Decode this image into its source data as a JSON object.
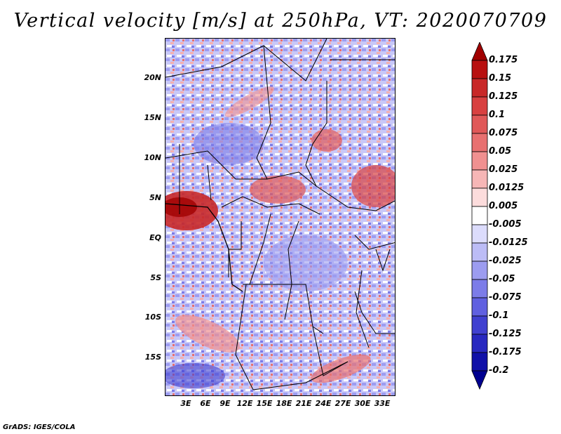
{
  "title": "Vertical velocity [m/s] at 250hPa, VT: 2020070709",
  "footer": "GrADS: IGES/COLA",
  "map": {
    "lat_labels": [
      "20N",
      "15N",
      "10N",
      "5N",
      "EQ",
      "5S",
      "10S",
      "15S"
    ],
    "lon_labels": [
      "3E",
      "6E",
      "9E",
      "12E",
      "15E",
      "18E",
      "21E",
      "24E",
      "27E",
      "30E",
      "33E"
    ]
  },
  "colorbar": {
    "labels": [
      "0.175",
      "0.15",
      "0.125",
      "0.1",
      "0.075",
      "0.05",
      "0.025",
      "0.0125",
      "0.005",
      "-0.005",
      "-0.0125",
      "-0.025",
      "-0.05",
      "-0.075",
      "-0.1",
      "-0.125",
      "-0.175",
      "-0.2"
    ],
    "colors": [
      "#a00000",
      "#b81010",
      "#c82828",
      "#d84040",
      "#e05858",
      "#e87070",
      "#f09090",
      "#f6b6b6",
      "#fcdcdc",
      "#ffffff",
      "#dcdcfc",
      "#bcbcf6",
      "#9c9cf0",
      "#7c7ce8",
      "#6060e0",
      "#4040d0",
      "#2828c0",
      "#1010a8",
      "#000090"
    ]
  }
}
